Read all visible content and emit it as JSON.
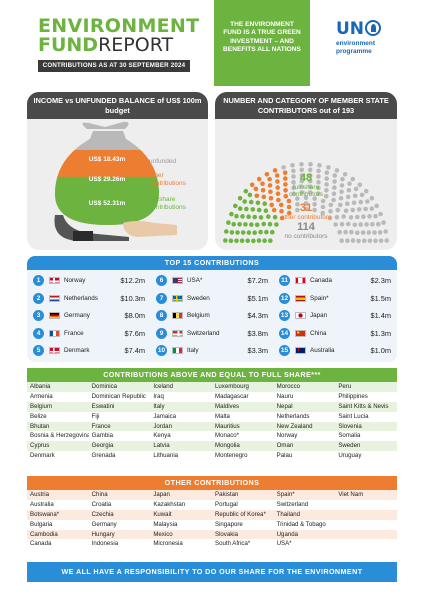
{
  "header": {
    "title_line1": "ENVIRONMENT",
    "title_line2_bold": "FUND",
    "title_line2_regular": "REPORT",
    "as_at": "CONTRIBUTIONS AS AT 30 SEPTEMBER 2024",
    "green_box_text": "THE ENVIRONMENT FUND IS A TRUE GREEN INVESTMENT – AND BENEFITS ALL NATIONS",
    "logo_un": "UN",
    "logo_line1": "environment",
    "logo_line2": "programme"
  },
  "income_panel": {
    "title": "INCOME vs UNFUNDED BALANCE of US$ 100m budget",
    "segments": [
      {
        "value_label": "US$ 18.43m",
        "legend": "unfunded",
        "value": 18.43,
        "color": "#b9b9b9"
      },
      {
        "value_label": "US$ 29.26m",
        "legend": "other contributions",
        "value": 29.26,
        "color": "#ed7d31"
      },
      {
        "value_label": "US$ 52.31m",
        "legend": "full share contributions",
        "value": 52.31,
        "color": "#6cb33f"
      }
    ]
  },
  "member_panel": {
    "title": "NUMBER AND CATEGORY OF MEMBER STATE CONTRIBUTORS out of 193",
    "total": 193,
    "categories": [
      {
        "count": "48",
        "label": "full share contributors",
        "color": "#6cb33f"
      },
      {
        "count": "31",
        "label": "other contributors",
        "color": "#ed7d31"
      },
      {
        "count": "114",
        "label": "no contributors",
        "color": "#b9b9b9"
      }
    ]
  },
  "top15": {
    "title": "TOP 15 CONTRIBUTIONS",
    "items": [
      {
        "rank": "1",
        "country": "Norway",
        "amount": "$12.2m",
        "flag": "norway"
      },
      {
        "rank": "2",
        "country": "Netherlands",
        "amount": "$10.3m",
        "flag": "netherlands"
      },
      {
        "rank": "3",
        "country": "Germany",
        "amount": "$8.0m",
        "flag": "germany"
      },
      {
        "rank": "4",
        "country": "France",
        "amount": "$7.6m",
        "flag": "france"
      },
      {
        "rank": "5",
        "country": "Denmark",
        "amount": "$7.4m",
        "flag": "denmark"
      },
      {
        "rank": "6",
        "country": "USA*",
        "amount": "$7.2m",
        "flag": "usa"
      },
      {
        "rank": "7",
        "country": "Sweden",
        "amount": "$5.1m",
        "flag": "sweden"
      },
      {
        "rank": "8",
        "country": "Belgium",
        "amount": "$4.3m",
        "flag": "belgium"
      },
      {
        "rank": "9",
        "country": "Switzerland",
        "amount": "$3.8m",
        "flag": "switzerland"
      },
      {
        "rank": "10",
        "country": "Italy",
        "amount": "$3.3m",
        "flag": "italy"
      },
      {
        "rank": "11",
        "country": "Canada",
        "amount": "$2.3m",
        "flag": "canada"
      },
      {
        "rank": "12",
        "country": "Spain*",
        "amount": "$1.5m",
        "flag": "spain"
      },
      {
        "rank": "13",
        "country": "Japan",
        "amount": "$1.4m",
        "flag": "japan"
      },
      {
        "rank": "14",
        "country": "China",
        "amount": "$1.3m",
        "flag": "china"
      },
      {
        "rank": "15",
        "country": "Australia",
        "amount": "$1.0m",
        "flag": "australia"
      }
    ]
  },
  "full_share": {
    "title": "CONTRIBUTIONS ABOVE AND EQUAL TO FULL SHARE***",
    "rows": [
      [
        "Albania",
        "Dominica",
        "Iceland",
        "Luxembourg",
        "Morocco",
        "Peru"
      ],
      [
        "Armenia",
        "Dominican Republic",
        "Iraq",
        "Madagascar",
        "Nauru",
        "Philippines"
      ],
      [
        "Belgium",
        "Eswatini",
        "Italy",
        "Maldives",
        "Nepal",
        "Saint Kitts & Nevis"
      ],
      [
        "Belize",
        "Fiji",
        "Jamaica",
        "Malta",
        "Netherlands",
        "Saint Lucia"
      ],
      [
        "Bhutan",
        "France",
        "Jordan",
        "Mauritius",
        "New Zealand",
        "Slovenia"
      ],
      [
        "Bosnia & Herzegovina",
        "Gambia",
        "Kenya",
        "Monaco*",
        "Norway",
        "Somalia"
      ],
      [
        "Cyprus",
        "Georgia",
        "Latvia",
        "Mongolia",
        "Oman",
        "Sweden"
      ],
      [
        "Denmark",
        "Grenada",
        "Lithuania",
        "Montenegro",
        "Palau",
        "Uruguay"
      ]
    ]
  },
  "other": {
    "title": "OTHER CONTRIBUTIONS",
    "rows": [
      [
        "Austria",
        "China",
        "Japan",
        "Pakistan",
        "Spain*",
        "Viet Nam"
      ],
      [
        "Australia",
        "Croatia",
        "Kazakhstan",
        "Portugal",
        "Switzerland",
        ""
      ],
      [
        "Botswana*",
        "Czechia",
        "Kuwait",
        "Republic of Korea*",
        "Thailand",
        ""
      ],
      [
        "Bulgaria",
        "Germany",
        "Malaysia",
        "Singapore",
        "Trinidad & Tobago",
        ""
      ],
      [
        "Cambodia",
        "Hungary",
        "Mexico",
        "Slovakia",
        "Uganda",
        ""
      ],
      [
        "Canada",
        "Indonesia",
        "Micronesia",
        "South Africa*",
        "USA*",
        ""
      ]
    ]
  },
  "footer": {
    "text": "WE ALL HAVE A RESPONSIBILITY TO DO OUR SHARE FOR THE ENVIRONMENT"
  },
  "colors": {
    "green": "#6cb33f",
    "orange": "#ed7d31",
    "grey": "#b9b9b9",
    "blue": "#2a8dd8",
    "dark": "#4a4a4a"
  }
}
